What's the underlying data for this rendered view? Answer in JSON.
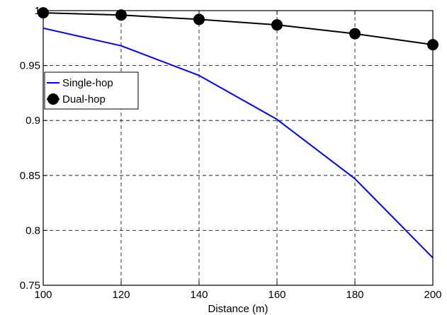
{
  "chart_data": {
    "type": "line",
    "xlabel": "Distance (m)",
    "ylabel": "",
    "xlim": [
      100,
      200
    ],
    "ylim": [
      0.75,
      1
    ],
    "xticks": [
      100,
      120,
      140,
      160,
      180,
      200
    ],
    "yticks": [
      0.75,
      0.8,
      0.85,
      0.9,
      0.95,
      1
    ],
    "xtick_labels": [
      "100",
      "120",
      "140",
      "160",
      "180",
      "200"
    ],
    "ytick_labels": [
      "0.75",
      "0.8",
      "0.85",
      "0.9",
      "0.95",
      "1"
    ],
    "grid": true,
    "legend_position": "upper-left",
    "series": [
      {
        "name": "Single-hop",
        "color": "#0000ff",
        "marker": "none",
        "x": [
          100,
          120,
          140,
          160,
          180,
          200
        ],
        "y": [
          0.984,
          0.968,
          0.941,
          0.901,
          0.847,
          0.775
        ]
      },
      {
        "name": "Dual-hop",
        "color": "#000000",
        "marker": "circle",
        "x": [
          100,
          120,
          140,
          160,
          180,
          200
        ],
        "y": [
          0.998,
          0.996,
          0.992,
          0.987,
          0.979,
          0.969
        ]
      }
    ]
  }
}
